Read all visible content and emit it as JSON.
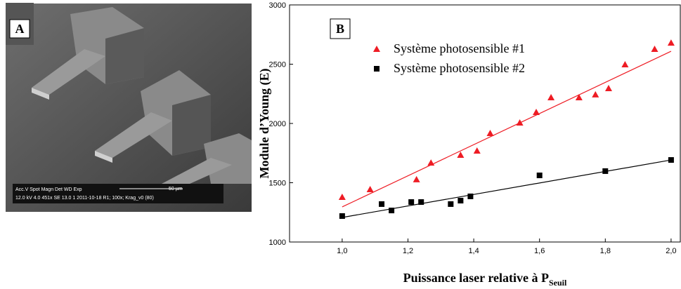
{
  "panel_a": {
    "label": "A",
    "info_header": "Acc.V  Spot Magn   Det  WD  Exp",
    "scale_bar": "50 µm",
    "info_values": "12.0 kV 4.0  451x   SE  13.0  1    2011-10-18 R1; 100x; Krag_v0 (80)"
  },
  "chart_data": {
    "type": "scatter",
    "panel_label": "B",
    "xlabel": "Puissance laser relative à P",
    "xlabel_sub": "Seuil",
    "ylabel": "Module d’Young (E)",
    "xlim": [
      0.84,
      2.028
    ],
    "ylim": [
      1000,
      3000
    ],
    "xticks": [
      {
        "value": 1.0,
        "label": "1,0"
      },
      {
        "value": 1.2,
        "label": "1,2"
      },
      {
        "value": 1.4,
        "label": "1,4"
      },
      {
        "value": 1.6,
        "label": "1,6"
      },
      {
        "value": 1.8,
        "label": "1,8"
      },
      {
        "value": 2.0,
        "label": "2,0"
      }
    ],
    "yticks": [
      1000,
      1500,
      2000,
      2500,
      3000
    ],
    "series": [
      {
        "name": "Système photosensible #1",
        "color": "#ee1c24",
        "marker": "triangle",
        "x": [
          1.0,
          1.085,
          1.226,
          1.27,
          1.36,
          1.41,
          1.45,
          1.54,
          1.59,
          1.635,
          1.72,
          1.77,
          1.81,
          1.86,
          1.95,
          2.0
        ],
        "values": [
          1379,
          1444,
          1527,
          1668,
          1734,
          1769,
          1917,
          2006,
          2095,
          2219,
          2219,
          2243,
          2296,
          2497,
          2627,
          2680
        ],
        "fit": {
          "x": [
            1.0,
            2.0
          ],
          "values": [
            1296,
            2609
          ]
        }
      },
      {
        "name": "Système photosensible #2",
        "color": "#000000",
        "marker": "square",
        "x": [
          1.0,
          1.12,
          1.15,
          1.21,
          1.24,
          1.33,
          1.36,
          1.39,
          1.6,
          1.8,
          2.0
        ],
        "values": [
          1219,
          1320,
          1266,
          1337,
          1337,
          1320,
          1349,
          1385,
          1562,
          1598,
          1692
        ],
        "fit": {
          "x": [
            1.0,
            2.0
          ],
          "values": [
            1207,
            1692
          ]
        }
      }
    ]
  }
}
